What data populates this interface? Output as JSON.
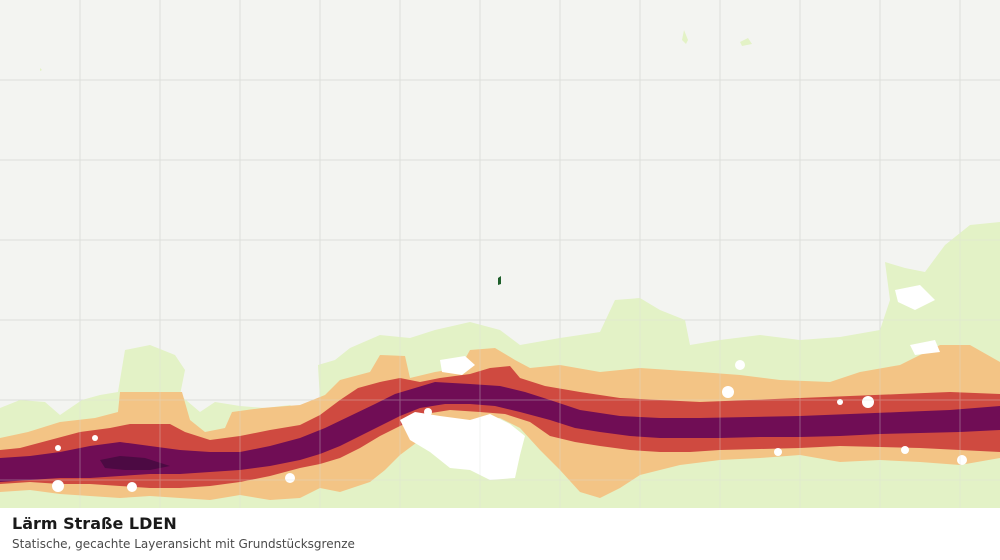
{
  "map": {
    "background_color": "#f3f4f1",
    "grid_color": "#dcdedb",
    "noise_bands": [
      {
        "name": "band-light",
        "color": "#e3f2c6"
      },
      {
        "name": "band-orange",
        "color": "#f3c485"
      },
      {
        "name": "band-red",
        "color": "#cf4a40"
      },
      {
        "name": "band-purple",
        "color": "#700d55"
      },
      {
        "name": "band-darkpurple",
        "color": "#4c0a43"
      }
    ],
    "parcel_marker_color": "#1d5e2a"
  },
  "caption": {
    "title": "Lärm Straße LDEN",
    "subtitle": "Statische, gecachte Layeransicht mit Grundstücksgrenze"
  }
}
